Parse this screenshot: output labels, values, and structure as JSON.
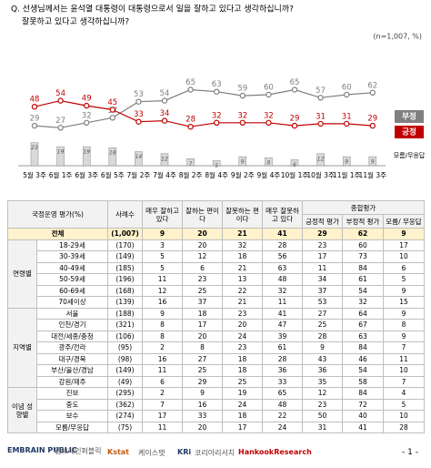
{
  "chart_data": {
    "type": "line",
    "question": [
      "Q. 선생님께서는 윤석열 대통령이 대통령으로서 일을 잘하고 있다고 생각하십니까?",
      "잘못하고 있다고 생각하십니까?"
    ],
    "note": "(n=1,007, %)",
    "categories": [
      "5월 3주",
      "6월 1주",
      "6월 3주",
      "6월 5주",
      "7월 2주",
      "7월 4주",
      "8월 2주",
      "8월 4주",
      "9월 2주",
      "9월 4주",
      "10월 1주",
      "10월 3주",
      "11월 1주",
      "11월 3주"
    ],
    "series": [
      {
        "name": "부정",
        "color": "#7f7f7f",
        "values": [
          29,
          27,
          32,
          37,
          53,
          54,
          65,
          63,
          59,
          60,
          65,
          57,
          60,
          62
        ]
      },
      {
        "name": "긍정",
        "color": "#c00000",
        "values": [
          48,
          54,
          49,
          45,
          33,
          34,
          28,
          32,
          32,
          32,
          29,
          31,
          31,
          29
        ]
      },
      {
        "name": "모름/무응답",
        "color": "#d9d9d9",
        "type": "bar",
        "values": [
          23,
          19,
          19,
          18,
          14,
          12,
          7,
          5,
          9,
          8,
          6,
          12,
          9,
          9
        ]
      }
    ]
  },
  "table": {
    "header": {
      "title": "국정운영 평가(%)",
      "n": "사례수",
      "cols": [
        "매우 잘하고 있다",
        "잘하는 편이다",
        "잘못하는 편이다",
        "매우 잘못하고 있다"
      ],
      "group": "종합평가",
      "sub": [
        "긍정적 평가",
        "부정적 평가",
        "모름/ 무응답"
      ]
    },
    "total": {
      "label": "전체",
      "n": "(1,007)",
      "values": [
        9,
        20,
        21,
        41,
        29,
        62,
        9
      ]
    },
    "groups": [
      {
        "label": "연령별",
        "rows": [
          {
            "label": "18-29세",
            "n": "(170)",
            "values": [
              3,
              20,
              32,
              28,
              23,
              60,
              17
            ]
          },
          {
            "label": "30-39세",
            "n": "(149)",
            "values": [
              5,
              12,
              18,
              56,
              17,
              73,
              10
            ]
          },
          {
            "label": "40-49세",
            "n": "(185)",
            "values": [
              5,
              6,
              21,
              63,
              11,
              84,
              6
            ]
          },
          {
            "label": "50-59세",
            "n": "(196)",
            "values": [
              11,
              23,
              13,
              48,
              34,
              61,
              5
            ]
          },
          {
            "label": "60-69세",
            "n": "(168)",
            "values": [
              12,
              25,
              22,
              32,
              37,
              54,
              9
            ]
          },
          {
            "label": "70세이상",
            "n": "(139)",
            "values": [
              16,
              37,
              21,
              11,
              53,
              32,
              15
            ]
          }
        ]
      },
      {
        "label": "지역별",
        "rows": [
          {
            "label": "서울",
            "n": "(188)",
            "values": [
              9,
              18,
              23,
              41,
              27,
              64,
              9
            ]
          },
          {
            "label": "인천/경기",
            "n": "(321)",
            "values": [
              8,
              17,
              20,
              47,
              25,
              67,
              8
            ]
          },
          {
            "label": "대전/세종/충청",
            "n": "(106)",
            "values": [
              8,
              20,
              24,
              39,
              28,
              63,
              9
            ]
          },
          {
            "label": "광주/전라",
            "n": "(95)",
            "values": [
              2,
              8,
              23,
              61,
              9,
              84,
              7
            ]
          },
          {
            "label": "대구/경북",
            "n": "(98)",
            "values": [
              16,
              27,
              18,
              28,
              43,
              46,
              11
            ]
          },
          {
            "label": "부산/울산/경남",
            "n": "(149)",
            "values": [
              11,
              25,
              18,
              36,
              36,
              54,
              10
            ]
          },
          {
            "label": "강원/제주",
            "n": "(49)",
            "values": [
              6,
              29,
              25,
              33,
              35,
              58,
              7
            ]
          }
        ]
      },
      {
        "label": "이념 성향별",
        "rows": [
          {
            "label": "진보",
            "n": "(295)",
            "values": [
              2,
              9,
              19,
              65,
              12,
              84,
              4
            ]
          },
          {
            "label": "중도",
            "n": "(362)",
            "values": [
              7,
              16,
              24,
              48,
              23,
              72,
              5
            ]
          },
          {
            "label": "보수",
            "n": "(274)",
            "values": [
              17,
              33,
              18,
              22,
              50,
              40,
              10
            ]
          },
          {
            "label": "모름/무응답",
            "n": "(75)",
            "values": [
              11,
              20,
              17,
              24,
              31,
              41,
              28
            ]
          }
        ]
      }
    ]
  },
  "footer": {
    "logos": [
      "EMBRAIN PUBLIC",
      "엠브레인퍼블릭",
      "Kstat",
      "케이스탯",
      "KRi",
      "코리아리서치",
      "HankookResearch"
    ],
    "page": "- 1 -"
  }
}
